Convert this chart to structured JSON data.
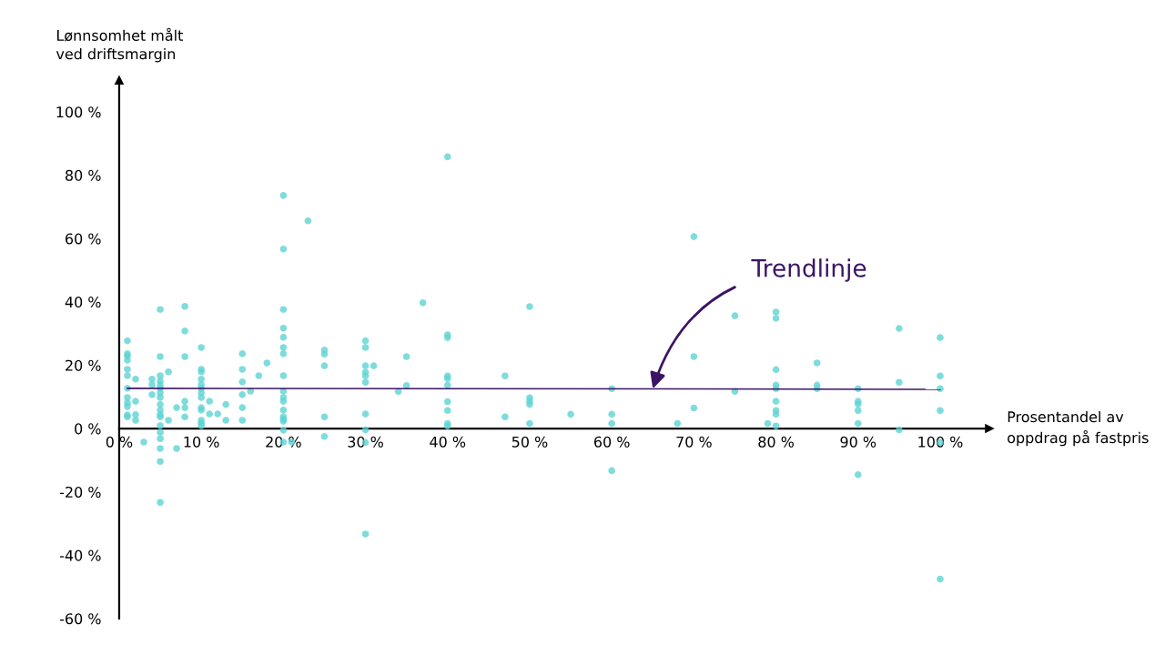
{
  "chart_data": {
    "type": "scatter",
    "xlabel": "Prosentandel av\noppdrag på fastpris",
    "ylabel": "Lønnsomhet målt\nved driftsmargin",
    "xlim": [
      0,
      106
    ],
    "ylim": [
      -60,
      110
    ],
    "xticks": [
      {
        "value": 0,
        "label": "0 %"
      },
      {
        "value": 10,
        "label": "10 %"
      },
      {
        "value": 20,
        "label": "20 %"
      },
      {
        "value": 30,
        "label": "30 %"
      },
      {
        "value": 40,
        "label": "40 %"
      },
      {
        "value": 50,
        "label": "50 %"
      },
      {
        "value": 60,
        "label": "60 %"
      },
      {
        "value": 70,
        "label": "70 %"
      },
      {
        "value": 80,
        "label": "80 %"
      },
      {
        "value": 90,
        "label": "90 %"
      },
      {
        "value": 100,
        "label": "100 %"
      }
    ],
    "yticks": [
      {
        "value": -60,
        "label": "-60 %"
      },
      {
        "value": -40,
        "label": "-40 %"
      },
      {
        "value": -20,
        "label": "-20 %"
      },
      {
        "value": 0,
        "label": "0 %"
      },
      {
        "value": 20,
        "label": "20 %"
      },
      {
        "value": 40,
        "label": "40 %"
      },
      {
        "value": 60,
        "label": "60 %"
      },
      {
        "value": 80,
        "label": "80 %"
      },
      {
        "value": 100,
        "label": "100 %"
      }
    ],
    "grid": false,
    "legend": false,
    "series": [
      {
        "color": "#5ed3d3",
        "marker": "circle",
        "x": [
          1,
          1,
          1,
          1,
          1,
          1,
          1,
          1,
          1,
          1,
          1,
          1,
          2,
          2,
          2,
          2,
          3,
          4,
          4,
          4,
          5,
          5,
          5,
          5,
          5,
          5,
          5,
          5,
          5,
          5,
          5,
          5,
          5,
          5,
          5,
          5,
          5,
          5,
          6,
          6,
          7,
          7,
          8,
          8,
          8,
          8,
          8,
          8,
          10,
          10,
          10,
          10,
          10,
          10,
          10,
          10,
          10,
          10,
          10,
          10,
          10,
          11,
          11,
          12,
          13,
          13,
          15,
          15,
          15,
          15,
          15,
          15,
          16,
          17,
          18,
          20,
          20,
          20,
          20,
          20,
          20,
          20,
          20,
          20,
          20,
          20,
          20,
          20,
          20,
          20,
          20,
          20,
          21,
          23,
          25,
          25,
          25,
          25,
          25,
          30,
          30,
          30,
          30,
          30,
          30,
          30,
          30,
          30,
          30,
          31,
          34,
          35,
          35,
          37,
          40,
          40,
          40,
          40,
          40,
          40,
          40,
          40,
          40,
          40,
          47,
          47,
          50,
          50,
          50,
          50,
          50,
          55,
          60,
          60,
          60,
          60,
          68,
          70,
          70,
          70,
          75,
          75,
          79,
          80,
          80,
          80,
          80,
          80,
          80,
          80,
          80,
          80,
          85,
          85,
          85,
          90,
          90,
          90,
          90,
          90,
          90,
          95,
          95,
          95,
          100,
          100,
          100,
          100,
          100,
          100
        ],
        "values": [
          27.7,
          23.6,
          22.9,
          21.6,
          18.7,
          16.7,
          12.7,
          9.8,
          8.1,
          6.9,
          4.3,
          3.7,
          15.6,
          8.6,
          4.4,
          2.6,
          -4.3,
          15.6,
          13.8,
          10.7,
          37.6,
          22.7,
          16.7,
          15,
          13.8,
          12.7,
          11.3,
          9.8,
          7.6,
          5.8,
          4.4,
          3.7,
          0.9,
          -1.2,
          -3.2,
          -6.3,
          -10.4,
          -23.3,
          17.9,
          2.6,
          6.6,
          -6.3,
          38.6,
          30.8,
          22.7,
          8.6,
          6.6,
          3.7,
          25.6,
          18.7,
          17.9,
          15.6,
          13.8,
          12.7,
          11.3,
          9.8,
          6.6,
          5.8,
          2.6,
          1.7,
          0.9,
          8.6,
          4.6,
          4.6,
          7.6,
          2.6,
          23.6,
          18.7,
          14.7,
          10.7,
          6.6,
          2.6,
          11.8,
          16.7,
          20.7,
          73.6,
          56.7,
          37.6,
          31.7,
          28.8,
          25.6,
          23.6,
          16.7,
          11.8,
          9.8,
          8.6,
          5.8,
          3.7,
          2.9,
          2.3,
          -0.5,
          -4.3,
          -4.3,
          65.6,
          24.8,
          23.5,
          19.8,
          3.7,
          -2.5,
          27.7,
          25.6,
          19.8,
          17.8,
          16.6,
          14.6,
          4.6,
          -0.4,
          -4.4,
          -33.3,
          19.8,
          11.7,
          22.7,
          13.6,
          39.7,
          85.8,
          29.6,
          28.7,
          16.6,
          15.8,
          13.7,
          8.5,
          5.7,
          1.6,
          0.8,
          16.6,
          3.7,
          38.5,
          9.7,
          8.6,
          7.6,
          1.6,
          4.5,
          12.6,
          4.5,
          1.6,
          -13.3,
          1.6,
          60.6,
          22.7,
          6.5,
          35.6,
          11.7,
          1.6,
          36.8,
          34.8,
          18.6,
          13.7,
          12.6,
          8.6,
          5.7,
          4.5,
          0.8,
          20.7,
          13.7,
          12.6,
          12.6,
          8.6,
          7.7,
          5.7,
          1.6,
          -14.6,
          31.6,
          14.6,
          -0.4,
          28.7,
          16.6,
          12.6,
          5.7,
          -4.4,
          -47.5
        ]
      },
      {
        "type": "line",
        "color": "#3b1466",
        "x": [
          1,
          100
        ],
        "values": [
          12.7,
          12.4
        ]
      }
    ],
    "annotations": [
      {
        "text": "Trendlinje",
        "x": 65,
        "y": 12.6
      }
    ]
  }
}
